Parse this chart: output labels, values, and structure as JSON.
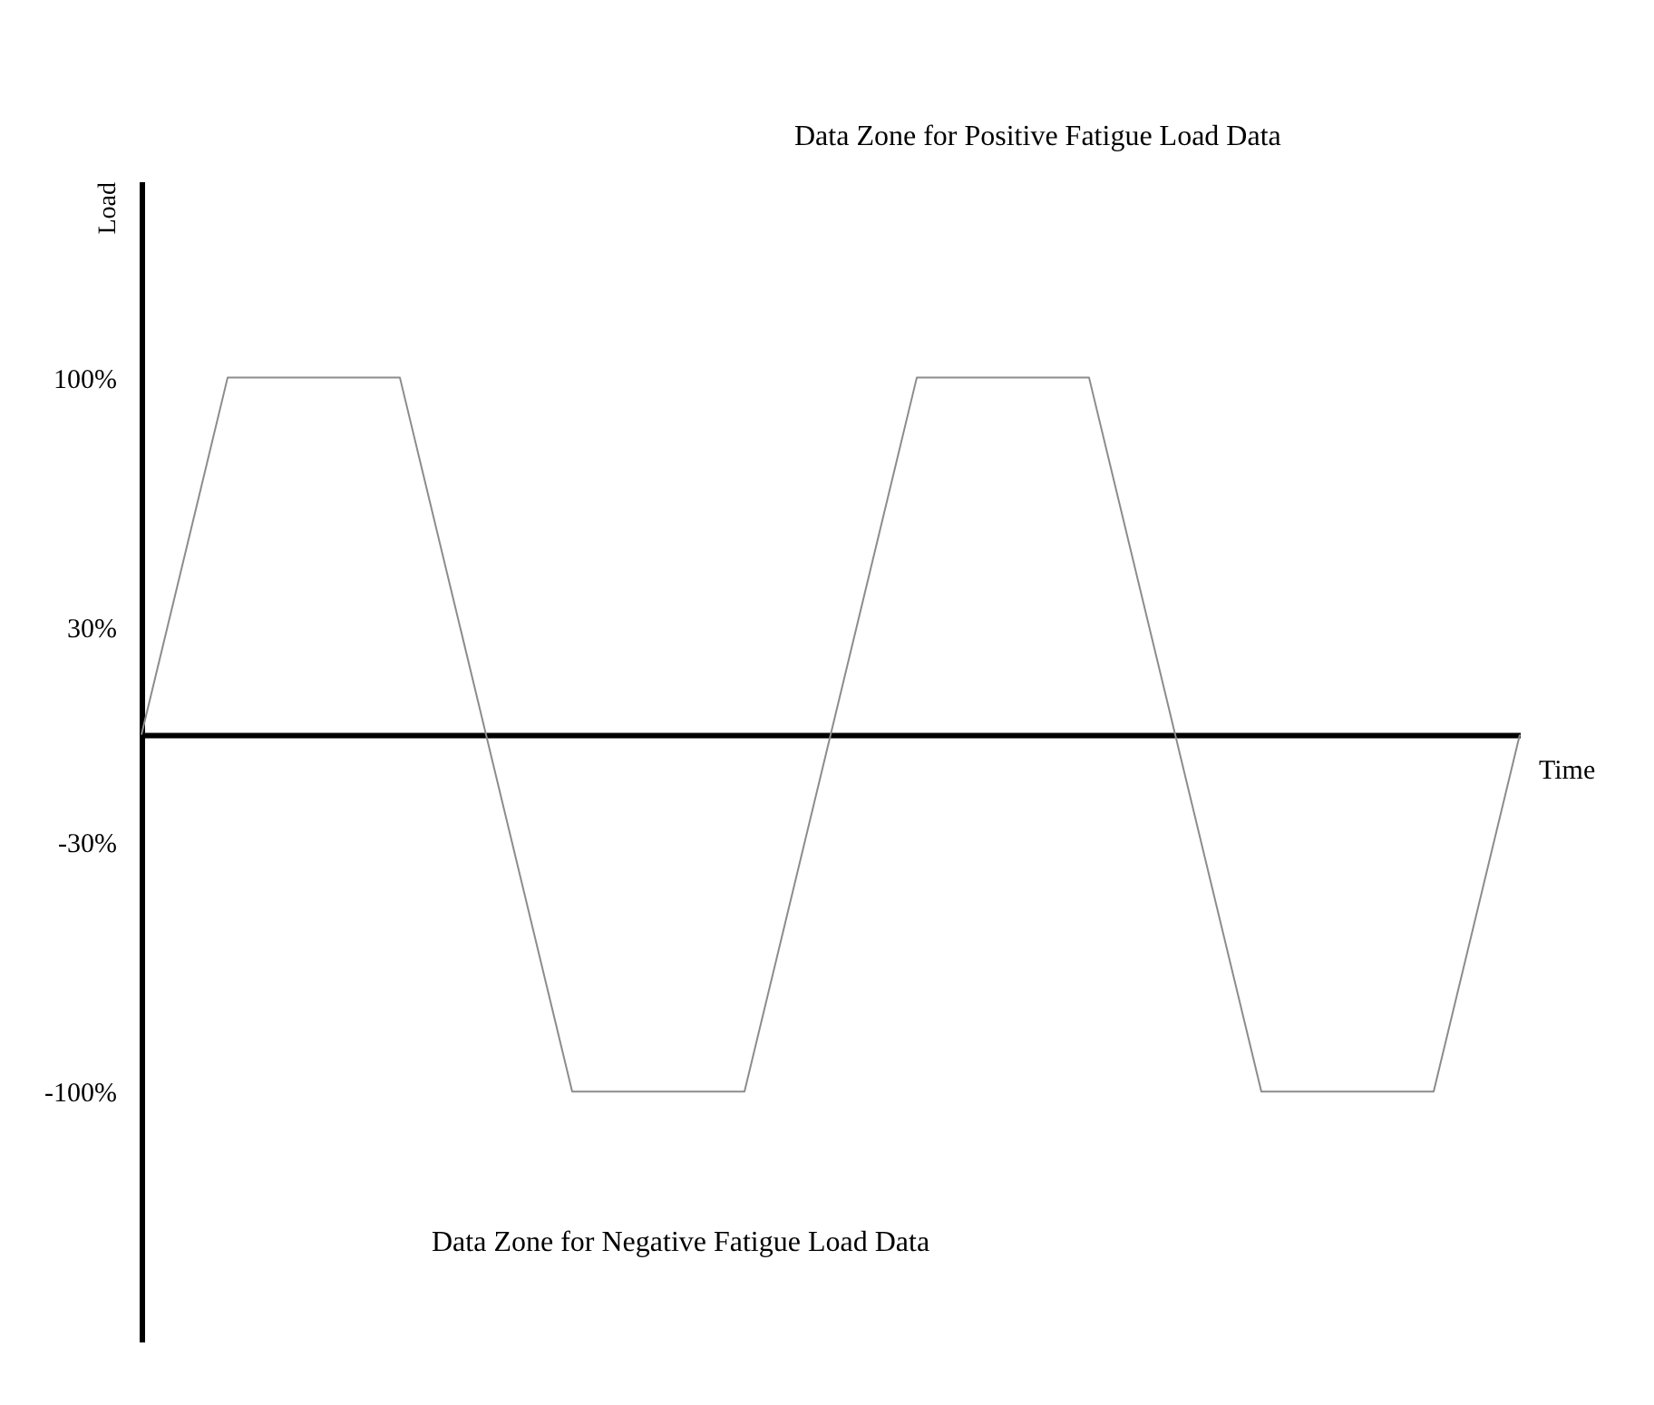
{
  "chart_data": {
    "type": "line",
    "ylabel": "Load",
    "xlabel": "Time",
    "categories": [
      null,
      null,
      null,
      null,
      null,
      null,
      null,
      null,
      null,
      null,
      null,
      null,
      null,
      null,
      null,
      null,
      null
    ],
    "series": [
      {
        "color": "#8c8c8c",
        "values": [
          0,
          100,
          100,
          100,
          0,
          -100,
          -100,
          -100,
          0,
          100,
          100,
          100,
          0,
          -100,
          -100,
          -100,
          0
        ]
      }
    ],
    "ylim": [
      -170,
      155
    ],
    "yticks": [
      {
        "value": 100,
        "label": "100%"
      },
      {
        "value": 30,
        "label": "30%"
      },
      {
        "value": -30,
        "label": "-30%"
      },
      {
        "value": -100,
        "label": "-100%"
      }
    ],
    "tick_labels": "y",
    "grid": false,
    "marker": "none",
    "line_style": "solid",
    "annotations": [
      "Data Zone for Positive Fatigue Load Data",
      "Data Zone for Negative Fatigue Load Data"
    ]
  }
}
